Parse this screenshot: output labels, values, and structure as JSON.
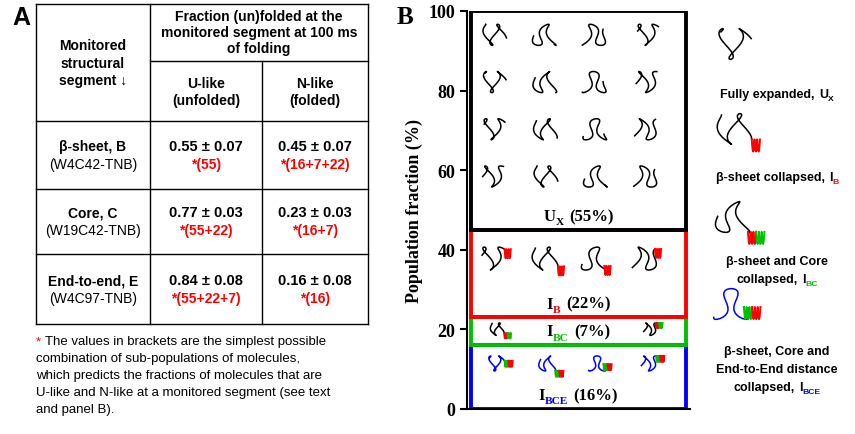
{
  "panel_labels": [
    "A",
    "B"
  ],
  "table": {
    "header": {
      "segment": [
        "Monitored",
        "structural",
        "segment ↓"
      ],
      "fraction": [
        "Fraction (un)folded at the",
        "monitored segment at 100 ms",
        "of folding"
      ],
      "columns": [
        [
          "U-like",
          "(unfolded)"
        ],
        [
          "N-like",
          "(folded)"
        ]
      ]
    },
    "rows": [
      {
        "segment": "β-sheet, B",
        "probe": "(W4C42-TNB)",
        "cells": [
          {
            "value": "0.55 ± 0.07",
            "note": "*(55)"
          },
          {
            "value": "0.45 ± 0.07",
            "note": "*(16+7+22)"
          }
        ]
      },
      {
        "segment": "Core, C",
        "probe": "(W19C42-TNB)",
        "cells": [
          {
            "value": "0.77 ± 0.03",
            "note": "*(55+22)"
          },
          {
            "value": "0.23 ± 0.03",
            "note": "*(16+7)"
          }
        ]
      },
      {
        "segment": "End-to-end, E",
        "probe": "(W4C97-TNB)",
        "cells": [
          {
            "value": "0.84 ± 0.08",
            "note": "*(55+22+7)"
          },
          {
            "value": "0.16 ± 0.08",
            "note": "*(16)"
          }
        ]
      }
    ],
    "footnote": {
      "marker": "*",
      "lines": [
        "The values in brackets are the simplest possible",
        "combination of sub-populations of molecules,",
        "which predicts the fractions of molecules that are",
        "U-like and N-like at a monitored segment (see text",
        "and panel B)."
      ]
    }
  },
  "chart_data": {
    "type": "bar",
    "stacked": true,
    "data_labels": true,
    "tick_labels": "y",
    "ylabel": "Population fraction (%)",
    "categories": [
      null
    ],
    "ylim": [
      0,
      100
    ],
    "yticks": [
      0,
      20,
      40,
      60,
      80,
      100
    ],
    "series": [
      {
        "name": "I",
        "subscript": "BCE",
        "color": "#0000ff",
        "values": [
          16
        ],
        "value_labels": [
          "(16%)"
        ]
      },
      {
        "name": "I",
        "subscript": "BC",
        "color": "#00c000",
        "values": [
          7
        ],
        "value_labels": [
          "(7%)"
        ]
      },
      {
        "name": "I",
        "subscript": "B",
        "color": "#ff0000",
        "values": [
          22
        ],
        "value_labels": [
          "(22%)"
        ]
      },
      {
        "name": "U",
        "subscript": "X",
        "color": "#000000",
        "values": [
          55
        ],
        "value_labels": [
          "(55%)"
        ]
      }
    ]
  },
  "schematic": [
    {
      "lines": [
        "Fully expanded,"
      ],
      "symbol": "U",
      "subscript": "X"
    },
    {
      "lines": [
        "β-sheet collapsed,"
      ],
      "symbol": "I",
      "subscript": "B"
    },
    {
      "lines": [
        "β-sheet and Core",
        "collapsed,"
      ],
      "symbol": "I",
      "subscript": "BC"
    },
    {
      "lines": [
        "β-sheet, Core and",
        "End-to-End distance",
        "collapsed,"
      ],
      "symbol": "I",
      "subscript": "BCE"
    }
  ]
}
